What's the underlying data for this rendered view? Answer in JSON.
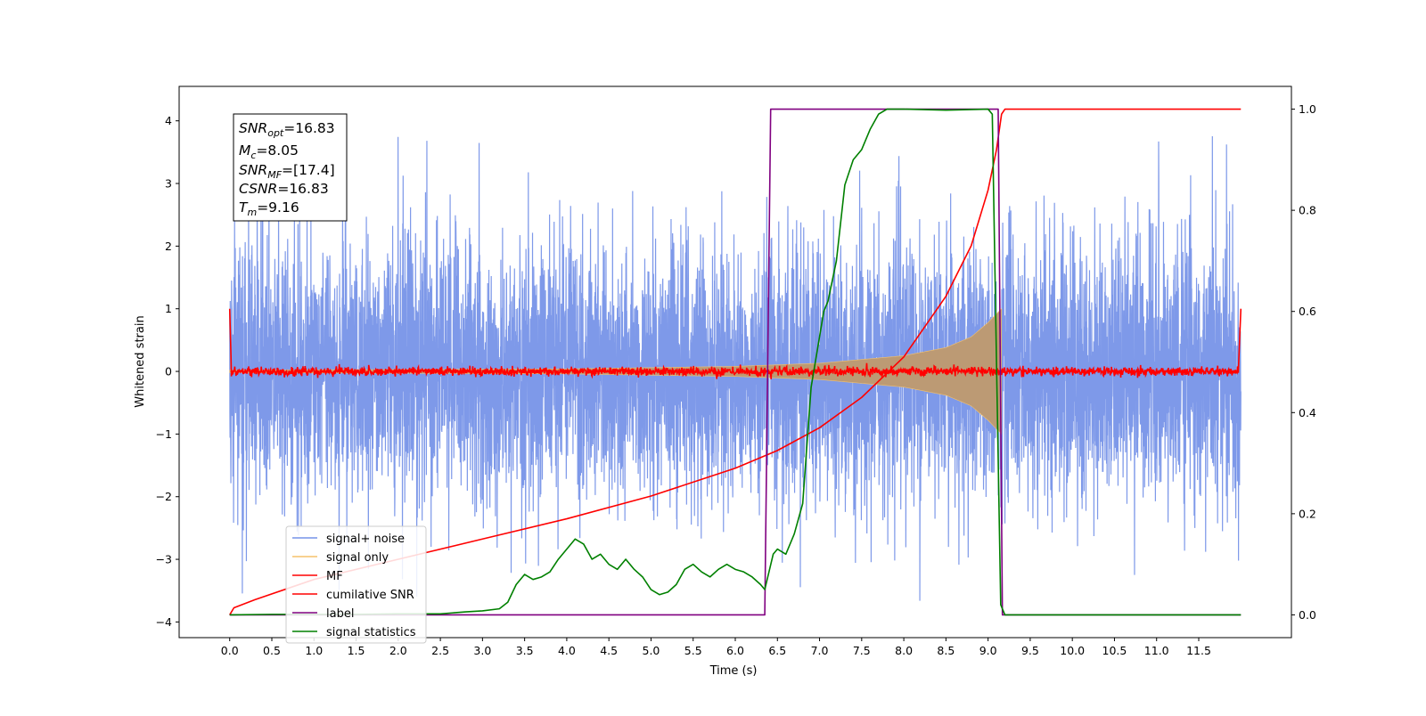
{
  "chart_data": {
    "type": "line",
    "xlabel": "Time (s)",
    "ylabel": "Whitened strain",
    "xlim": [
      -0.6,
      12.6
    ],
    "ylim": [
      -4.25,
      4.55
    ],
    "y2lim": [
      -0.045,
      1.045
    ],
    "x_ticks": [
      "0.0",
      "0.5",
      "1.0",
      "1.5",
      "2.0",
      "2.5",
      "3.0",
      "3.5",
      "4.0",
      "4.5",
      "5.0",
      "5.5",
      "6.0",
      "6.5",
      "7.0",
      "7.5",
      "8.0",
      "8.5",
      "9.0",
      "9.5",
      "10.0",
      "10.5",
      "11.0",
      "11.5"
    ],
    "y_ticks_left": [
      "4",
      "3",
      "2",
      "1",
      "0",
      "−1",
      "−2",
      "−3",
      "−4"
    ],
    "y_ticks_right": [
      "1.0",
      "0.8",
      "0.6",
      "0.4",
      "0.2",
      "0.0"
    ],
    "info_box": {
      "snr_opt": {
        "base": "SNR",
        "sub": "opt",
        "value": "=16.83"
      },
      "mc": {
        "base": "M",
        "sub": "c",
        "value": "=8.05"
      },
      "snr_mf": {
        "base": "SNR",
        "sub": "MF",
        "value": "=[17.4]"
      },
      "csnr": {
        "base": "CSNR",
        "sub": "",
        "value": "=16.83"
      },
      "tm": {
        "base": "T",
        "sub": "m",
        "value": "=9.16"
      }
    },
    "legend_placement": "lower-left",
    "series": [
      {
        "name": "signal+ noise",
        "axis": "left",
        "color": "#7793e8",
        "style": "noise",
        "x_range": [
          0.0,
          12.0
        ],
        "amplitude_typical": 1.3,
        "amplitude_peak": 4.15
      },
      {
        "name": "signal only",
        "axis": "left",
        "color": "#f5c26b",
        "fill": "#bc9a74",
        "style": "chirp",
        "x_range": [
          0.0,
          9.16
        ],
        "envelope": {
          "x": [
            0.0,
            4.0,
            6.0,
            7.0,
            8.0,
            8.5,
            8.8,
            9.0,
            9.1,
            9.16
          ],
          "y": [
            0.02,
            0.04,
            0.08,
            0.13,
            0.25,
            0.38,
            0.55,
            0.78,
            0.92,
            1.0
          ]
        }
      },
      {
        "name": "MF",
        "axis": "left",
        "color": "#ff0000",
        "style": "noise",
        "x_range": [
          0.0,
          12.0
        ],
        "amplitude_typical": 0.05,
        "edge_peak": 1.0
      },
      {
        "name": "cumilative SNR",
        "axis": "right",
        "color": "#ff0000",
        "x": [
          0.0,
          0.05,
          0.3,
          1.0,
          2.0,
          3.0,
          4.0,
          5.0,
          6.0,
          6.5,
          7.0,
          7.5,
          8.0,
          8.5,
          8.8,
          9.0,
          9.1,
          9.16,
          9.2,
          12.0
        ],
        "y": [
          0.0,
          0.014,
          0.03,
          0.07,
          0.11,
          0.15,
          0.19,
          0.235,
          0.29,
          0.325,
          0.37,
          0.43,
          0.51,
          0.63,
          0.73,
          0.84,
          0.92,
          0.99,
          1.0,
          1.0
        ]
      },
      {
        "name": "label",
        "axis": "right",
        "color": "#800080",
        "x": [
          0.0,
          6.35,
          6.42,
          9.12,
          9.17,
          12.0
        ],
        "y": [
          0.0,
          0.0,
          1.0,
          1.0,
          0.0,
          0.0
        ]
      },
      {
        "name": "signal statistics",
        "axis": "right",
        "color": "#008000",
        "x": [
          0.0,
          0.5,
          1.0,
          1.5,
          2.0,
          2.5,
          2.8,
          3.0,
          3.2,
          3.3,
          3.4,
          3.5,
          3.6,
          3.7,
          3.8,
          3.9,
          4.0,
          4.1,
          4.2,
          4.3,
          4.4,
          4.5,
          4.6,
          4.7,
          4.8,
          4.9,
          5.0,
          5.1,
          5.2,
          5.3,
          5.4,
          5.5,
          5.6,
          5.7,
          5.8,
          5.9,
          6.0,
          6.1,
          6.2,
          6.3,
          6.35,
          6.45,
          6.5,
          6.6,
          6.7,
          6.8,
          6.9,
          7.0,
          7.05,
          7.1,
          7.2,
          7.3,
          7.4,
          7.5,
          7.6,
          7.7,
          7.8,
          8.0,
          8.5,
          9.0,
          9.05,
          9.1,
          9.15,
          9.2,
          12.0
        ],
        "y": [
          0.0,
          0.001,
          0.001,
          0.001,
          0.002,
          0.002,
          0.006,
          0.008,
          0.012,
          0.025,
          0.06,
          0.08,
          0.07,
          0.075,
          0.085,
          0.11,
          0.13,
          0.15,
          0.14,
          0.11,
          0.12,
          0.1,
          0.09,
          0.11,
          0.09,
          0.075,
          0.05,
          0.04,
          0.045,
          0.06,
          0.09,
          0.1,
          0.085,
          0.075,
          0.09,
          0.1,
          0.09,
          0.085,
          0.075,
          0.06,
          0.05,
          0.12,
          0.13,
          0.12,
          0.16,
          0.22,
          0.45,
          0.55,
          0.6,
          0.62,
          0.7,
          0.85,
          0.9,
          0.92,
          0.96,
          0.99,
          1.0,
          1.0,
          0.998,
          1.0,
          0.99,
          0.5,
          0.02,
          0.0,
          0.0
        ]
      }
    ]
  }
}
